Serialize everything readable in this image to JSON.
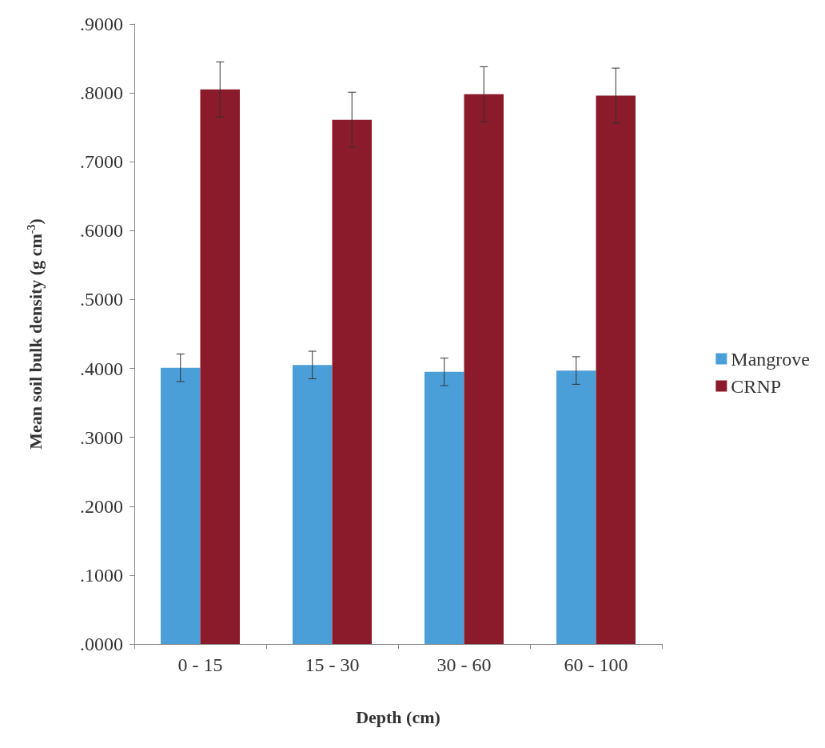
{
  "chart_data": {
    "type": "bar",
    "xlabel": "Depth (cm)",
    "ylabel": "Mean soil bulk density (g cm$^{-3}$)",
    "categories": [
      "0 - 15",
      "15 - 30",
      "30 - 60",
      "60 - 100"
    ],
    "series": [
      {
        "name": "Mangrove",
        "color": "#4a9fd8",
        "values": [
          0.401,
          0.405,
          0.395,
          0.397
        ],
        "errors": [
          0.02,
          0.02,
          0.02,
          0.02
        ]
      },
      {
        "name": "CRNP",
        "color": "#8b1a2a",
        "values": [
          0.805,
          0.761,
          0.798,
          0.796
        ],
        "errors": [
          0.04,
          0.04,
          0.04,
          0.04
        ]
      }
    ],
    "ylim": [
      0,
      0.9
    ],
    "yticks": [
      {
        "value": 0,
        "label": ".0000"
      },
      {
        "value": 0.1,
        "label": ".1000"
      },
      {
        "value": 0.2,
        "label": ".2000"
      },
      {
        "value": 0.3,
        "label": ".3000"
      },
      {
        "value": 0.4,
        "label": ".4000"
      },
      {
        "value": 0.5,
        "label": ".5000"
      },
      {
        "value": 0.6,
        "label": ".6000"
      },
      {
        "value": 0.7,
        "label": ".7000"
      },
      {
        "value": 0.8,
        "label": ".8000"
      },
      {
        "value": 0.9,
        "label": ".9000"
      }
    ],
    "grid": false,
    "legend": "right"
  }
}
